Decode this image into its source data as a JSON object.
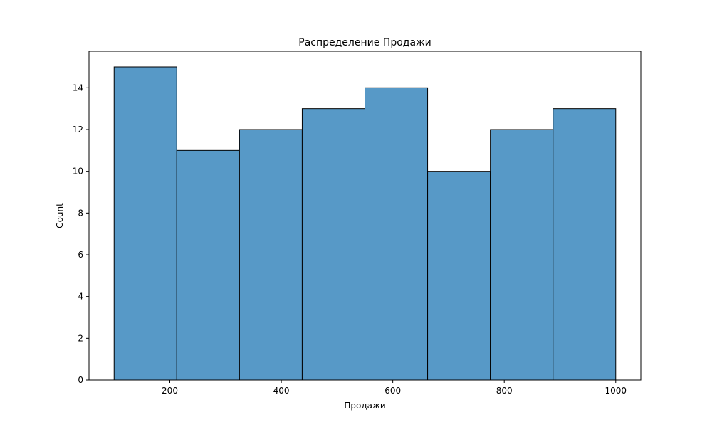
{
  "chart_data": {
    "type": "bar",
    "title": "Распределение Продажи",
    "xlabel": "Продажи",
    "ylabel": "Count",
    "bin_edges": [
      100,
      212.5,
      325,
      437.5,
      550,
      662.5,
      775,
      887.5,
      1000
    ],
    "values": [
      15,
      11,
      12,
      13,
      14,
      10,
      12,
      13
    ],
    "xlim": [
      55,
      1045
    ],
    "ylim": [
      0,
      15.75
    ],
    "xticks": [
      200,
      400,
      600,
      800,
      1000
    ],
    "yticks": [
      0,
      2,
      4,
      6,
      8,
      10,
      12,
      14
    ],
    "grid": false,
    "legend": "none",
    "bar_color": "#5799c7",
    "edge_color": "#000000"
  }
}
